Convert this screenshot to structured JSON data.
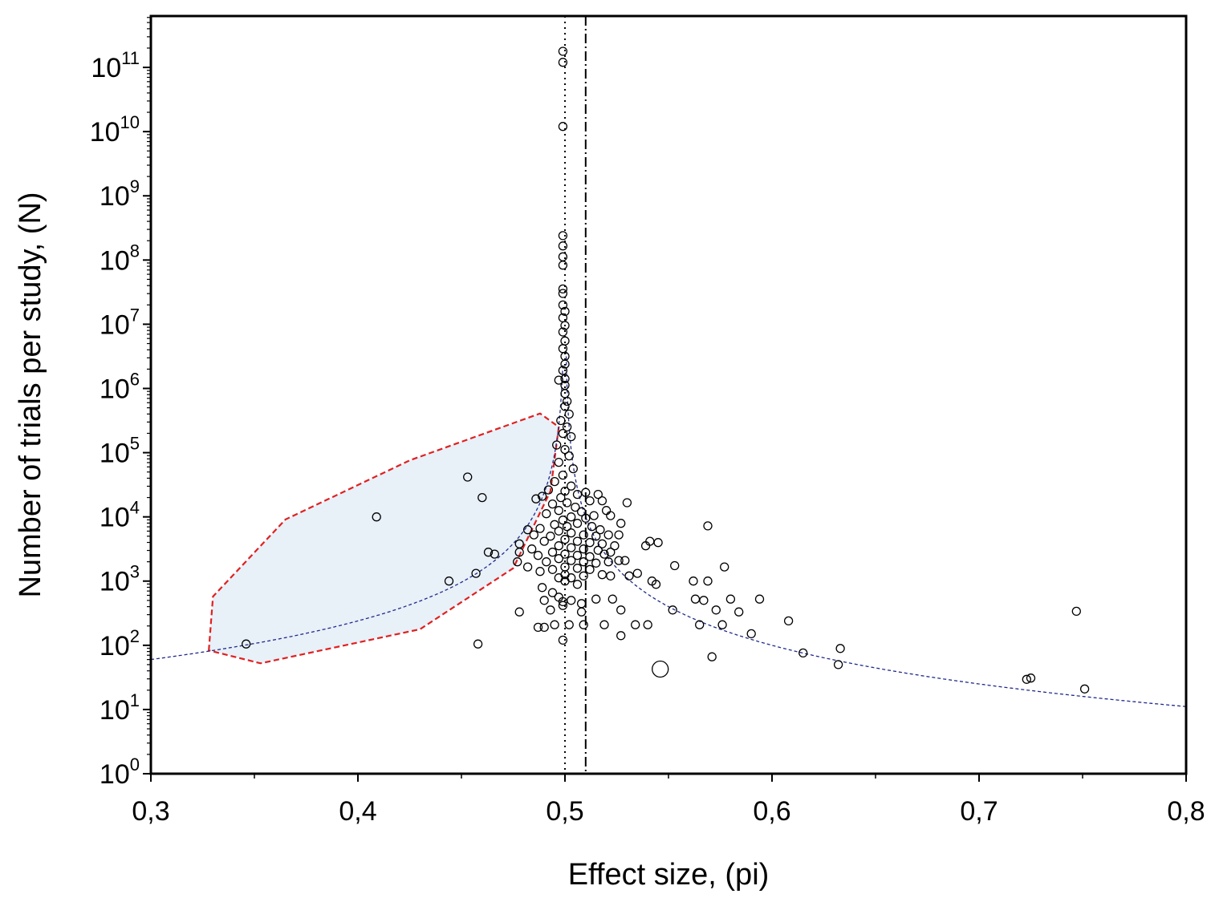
{
  "chart_data": {
    "type": "scatter",
    "title": "",
    "xlabel": "Effect size, (pi)",
    "ylabel": "Number of trials per study, (N)",
    "xlim": [
      0.3,
      0.8
    ],
    "ylim_log10": [
      0,
      11.8
    ],
    "y_scale": "log",
    "x_ticks": [
      {
        "value": 0.3,
        "label": "0,3"
      },
      {
        "value": 0.4,
        "label": "0,4"
      },
      {
        "value": 0.5,
        "label": "0,5"
      },
      {
        "value": 0.6,
        "label": "0,6"
      },
      {
        "value": 0.7,
        "label": "0,7"
      },
      {
        "value": 0.8,
        "label": "0,8"
      }
    ],
    "y_ticks": [
      {
        "exp": 0,
        "base": "10",
        "sup": "0"
      },
      {
        "exp": 1,
        "base": "10",
        "sup": "1"
      },
      {
        "exp": 2,
        "base": "10",
        "sup": "2"
      },
      {
        "exp": 3,
        "base": "10",
        "sup": "3"
      },
      {
        "exp": 4,
        "base": "10",
        "sup": "4"
      },
      {
        "exp": 5,
        "base": "10",
        "sup": "5"
      },
      {
        "exp": 6,
        "base": "10",
        "sup": "6"
      },
      {
        "exp": 7,
        "base": "10",
        "sup": "7"
      },
      {
        "exp": 8,
        "base": "10",
        "sup": "8"
      },
      {
        "exp": 9,
        "base": "10",
        "sup": "9"
      },
      {
        "exp": 10,
        "base": "10",
        "sup": "10"
      },
      {
        "exp": 11,
        "base": "10",
        "sup": "11"
      }
    ],
    "reference_lines": [
      {
        "name": "null-effect-line",
        "x": 0.5,
        "style": "dotted"
      },
      {
        "name": "mean-effect-line",
        "x": 0.51,
        "style": "dash-dot"
      }
    ],
    "funnel_curve_color": "#1f2a8a",
    "region_fill": "#e8f0f8",
    "region_stroke": "#e02020",
    "region_polygon": [
      [
        0.328,
        1.92
      ],
      [
        0.33,
        2.76
      ],
      [
        0.365,
        3.96
      ],
      [
        0.425,
        4.88
      ],
      [
        0.488,
        5.61
      ],
      [
        0.497,
        5.4
      ],
      [
        0.493,
        4.4
      ],
      [
        0.475,
        3.2
      ],
      [
        0.43,
        2.25
      ],
      [
        0.353,
        1.72
      ]
    ],
    "points": [
      [
        0.499,
        11.25
      ],
      [
        0.499,
        11.08
      ],
      [
        0.499,
        10.08
      ],
      [
        0.499,
        8.38
      ],
      [
        0.499,
        8.22
      ],
      [
        0.499,
        8.05
      ],
      [
        0.499,
        7.92
      ],
      [
        0.499,
        7.55
      ],
      [
        0.499,
        7.48
      ],
      [
        0.499,
        7.3
      ],
      [
        0.5,
        7.2
      ],
      [
        0.499,
        7.1
      ],
      [
        0.5,
        6.98
      ],
      [
        0.499,
        6.88
      ],
      [
        0.5,
        6.74
      ],
      [
        0.499,
        6.62
      ],
      [
        0.5,
        6.5
      ],
      [
        0.5,
        6.38
      ],
      [
        0.499,
        6.28
      ],
      [
        0.5,
        6.15
      ],
      [
        0.5,
        6.05
      ],
      [
        0.5,
        5.92
      ],
      [
        0.497,
        6.13
      ],
      [
        0.501,
        5.8
      ],
      [
        0.5,
        5.72
      ],
      [
        0.502,
        5.6
      ],
      [
        0.498,
        5.5
      ],
      [
        0.501,
        5.4
      ],
      [
        0.499,
        5.3
      ],
      [
        0.503,
        5.25
      ],
      [
        0.496,
        5.12
      ],
      [
        0.5,
        5.05
      ],
      [
        0.502,
        4.95
      ],
      [
        0.497,
        4.85
      ],
      [
        0.504,
        4.75
      ],
      [
        0.499,
        4.65
      ],
      [
        0.495,
        4.55
      ],
      [
        0.503,
        4.48
      ],
      [
        0.5,
        4.4
      ],
      [
        0.506,
        4.35
      ],
      [
        0.498,
        4.3
      ],
      [
        0.51,
        4.38
      ],
      [
        0.492,
        4.42
      ],
      [
        0.489,
        4.32
      ],
      [
        0.486,
        4.28
      ],
      [
        0.494,
        4.2
      ],
      [
        0.501,
        4.22
      ],
      [
        0.505,
        4.15
      ],
      [
        0.512,
        4.25
      ],
      [
        0.516,
        4.35
      ],
      [
        0.518,
        4.25
      ],
      [
        0.508,
        4.08
      ],
      [
        0.497,
        4.1
      ],
      [
        0.491,
        4.05
      ],
      [
        0.503,
        4.0
      ],
      [
        0.51,
        3.98
      ],
      [
        0.514,
        4.02
      ],
      [
        0.52,
        4.1
      ],
      [
        0.522,
        4.02
      ],
      [
        0.53,
        4.22
      ],
      [
        0.499,
        3.95
      ],
      [
        0.506,
        3.9
      ],
      [
        0.501,
        3.85
      ],
      [
        0.495,
        3.88
      ],
      [
        0.513,
        3.85
      ],
      [
        0.517,
        3.8
      ],
      [
        0.527,
        3.9
      ],
      [
        0.488,
        3.82
      ],
      [
        0.482,
        3.8
      ],
      [
        0.497,
        3.78
      ],
      [
        0.503,
        3.75
      ],
      [
        0.509,
        3.72
      ],
      [
        0.515,
        3.7
      ],
      [
        0.521,
        3.72
      ],
      [
        0.526,
        3.72
      ],
      [
        0.493,
        3.7
      ],
      [
        0.485,
        3.72
      ],
      [
        0.5,
        3.65
      ],
      [
        0.506,
        3.62
      ],
      [
        0.512,
        3.6
      ],
      [
        0.518,
        3.58
      ],
      [
        0.524,
        3.55
      ],
      [
        0.49,
        3.62
      ],
      [
        0.478,
        3.58
      ],
      [
        0.497,
        3.55
      ],
      [
        0.503,
        3.52
      ],
      [
        0.509,
        3.5
      ],
      [
        0.516,
        3.48
      ],
      [
        0.522,
        3.45
      ],
      [
        0.541,
        3.62
      ],
      [
        0.545,
        3.6
      ],
      [
        0.569,
        3.86
      ],
      [
        0.484,
        3.5
      ],
      [
        0.494,
        3.45
      ],
      [
        0.5,
        3.42
      ],
      [
        0.506,
        3.4
      ],
      [
        0.512,
        3.38
      ],
      [
        0.519,
        3.42
      ],
      [
        0.487,
        3.4
      ],
      [
        0.478,
        3.45
      ],
      [
        0.539,
        3.55
      ],
      [
        0.463,
        3.45
      ],
      [
        0.466,
        3.42
      ],
      [
        0.497,
        3.35
      ],
      [
        0.503,
        3.32
      ],
      [
        0.509,
        3.3
      ],
      [
        0.515,
        3.28
      ],
      [
        0.521,
        3.3
      ],
      [
        0.491,
        3.3
      ],
      [
        0.482,
        3.22
      ],
      [
        0.477,
        3.3
      ],
      [
        0.526,
        3.32
      ],
      [
        0.529,
        3.32
      ],
      [
        0.553,
        3.24
      ],
      [
        0.5,
        3.22
      ],
      [
        0.506,
        3.2
      ],
      [
        0.512,
        3.18
      ],
      [
        0.494,
        3.18
      ],
      [
        0.488,
        3.15
      ],
      [
        0.518,
        3.1
      ],
      [
        0.577,
        3.22
      ],
      [
        0.5,
        3.1
      ],
      [
        0.503,
        3.05
      ],
      [
        0.509,
        3.08
      ],
      [
        0.497,
        3.05
      ],
      [
        0.531,
        3.08
      ],
      [
        0.535,
        3.12
      ],
      [
        0.542,
        3.0
      ],
      [
        0.544,
        2.95
      ],
      [
        0.562,
        3.0
      ],
      [
        0.569,
        3.0
      ],
      [
        0.522,
        3.08
      ],
      [
        0.5,
        3.0
      ],
      [
        0.506,
        2.95
      ],
      [
        0.489,
        2.9
      ],
      [
        0.494,
        2.82
      ],
      [
        0.497,
        2.75
      ],
      [
        0.499,
        2.68
      ],
      [
        0.49,
        2.7
      ],
      [
        0.493,
        2.55
      ],
      [
        0.503,
        2.7
      ],
      [
        0.508,
        2.65
      ],
      [
        0.515,
        2.72
      ],
      [
        0.523,
        2.72
      ],
      [
        0.563,
        2.72
      ],
      [
        0.567,
        2.7
      ],
      [
        0.58,
        2.72
      ],
      [
        0.594,
        2.72
      ],
      [
        0.573,
        2.55
      ],
      [
        0.584,
        2.52
      ],
      [
        0.552,
        2.55
      ],
      [
        0.527,
        2.55
      ],
      [
        0.508,
        2.52
      ],
      [
        0.499,
        2.62
      ],
      [
        0.478,
        2.52
      ],
      [
        0.565,
        2.32
      ],
      [
        0.576,
        2.32
      ],
      [
        0.534,
        2.32
      ],
      [
        0.54,
        2.32
      ],
      [
        0.519,
        2.32
      ],
      [
        0.502,
        2.32
      ],
      [
        0.509,
        2.32
      ],
      [
        0.495,
        2.32
      ],
      [
        0.49,
        2.28
      ],
      [
        0.487,
        2.28
      ],
      [
        0.527,
        2.15
      ],
      [
        0.499,
        2.08
      ],
      [
        0.59,
        2.18
      ],
      [
        0.608,
        2.38
      ],
      [
        0.747,
        2.53
      ],
      [
        0.615,
        1.88
      ],
      [
        0.633,
        1.95
      ],
      [
        0.632,
        1.7
      ],
      [
        0.571,
        1.82
      ],
      [
        0.723,
        1.47
      ],
      [
        0.725,
        1.49
      ],
      [
        0.751,
        1.32
      ],
      [
        0.346,
        2.02
      ],
      [
        0.409,
        4.0
      ],
      [
        0.453,
        4.62
      ],
      [
        0.46,
        4.3
      ],
      [
        0.444,
        3.0
      ],
      [
        0.457,
        3.12
      ],
      [
        0.458,
        2.02
      ],
      [
        0.546,
        1.63
      ]
    ]
  }
}
